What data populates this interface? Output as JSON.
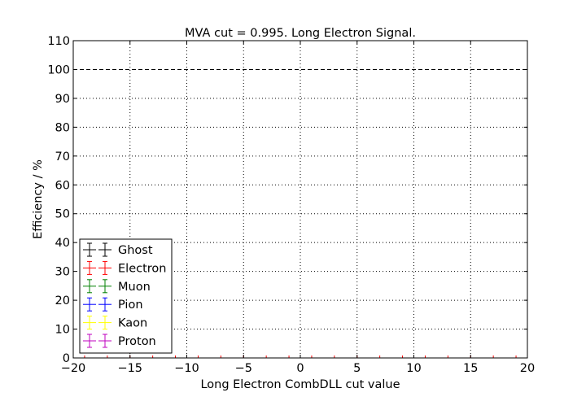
{
  "chart_data": {
    "type": "scatter",
    "title": "MVA cut = 0.995. Long Electron Signal.",
    "xlabel": "Long Electron CombDLL cut value",
    "ylabel": "Efficiency / %",
    "xlim": [
      -20,
      20
    ],
    "ylim": [
      0,
      110
    ],
    "xticks": [
      -20,
      -15,
      -10,
      -5,
      0,
      5,
      10,
      15,
      20
    ],
    "yticks": [
      0,
      10,
      20,
      30,
      40,
      50,
      60,
      70,
      80,
      90,
      100,
      110
    ],
    "xtick_labels": [
      "−20",
      "−15",
      "−10",
      "−5",
      "0",
      "5",
      "10",
      "15",
      "20"
    ],
    "ytick_labels": [
      "0",
      "10",
      "20",
      "30",
      "40",
      "50",
      "60",
      "70",
      "80",
      "90",
      "100",
      "110"
    ],
    "grid": true,
    "reference_line": {
      "y": 100,
      "style": "dashed",
      "color": "#000000"
    },
    "legend": {
      "placement": "lower-left"
    },
    "series": [
      {
        "name": "Ghost",
        "color": "#000000",
        "x": [],
        "y": []
      },
      {
        "name": "Electron",
        "color": "#ff0000",
        "x": [
          -19,
          -17,
          -15,
          -13,
          -11,
          -9,
          -7,
          -5,
          -3,
          -1,
          1,
          3,
          5,
          7,
          9,
          11,
          13,
          15,
          17,
          19
        ],
        "y": [
          0,
          0,
          0,
          0,
          0,
          0,
          0,
          0,
          0,
          0,
          0,
          0,
          0,
          0,
          0,
          0,
          0,
          0,
          0,
          0
        ]
      },
      {
        "name": "Muon",
        "color": "#008000",
        "x": [],
        "y": []
      },
      {
        "name": "Pion",
        "color": "#0000ff",
        "x": [],
        "y": []
      },
      {
        "name": "Kaon",
        "color": "#ffff00",
        "x": [],
        "y": []
      },
      {
        "name": "Proton",
        "color": "#bf00bf",
        "x": [],
        "y": []
      }
    ]
  }
}
